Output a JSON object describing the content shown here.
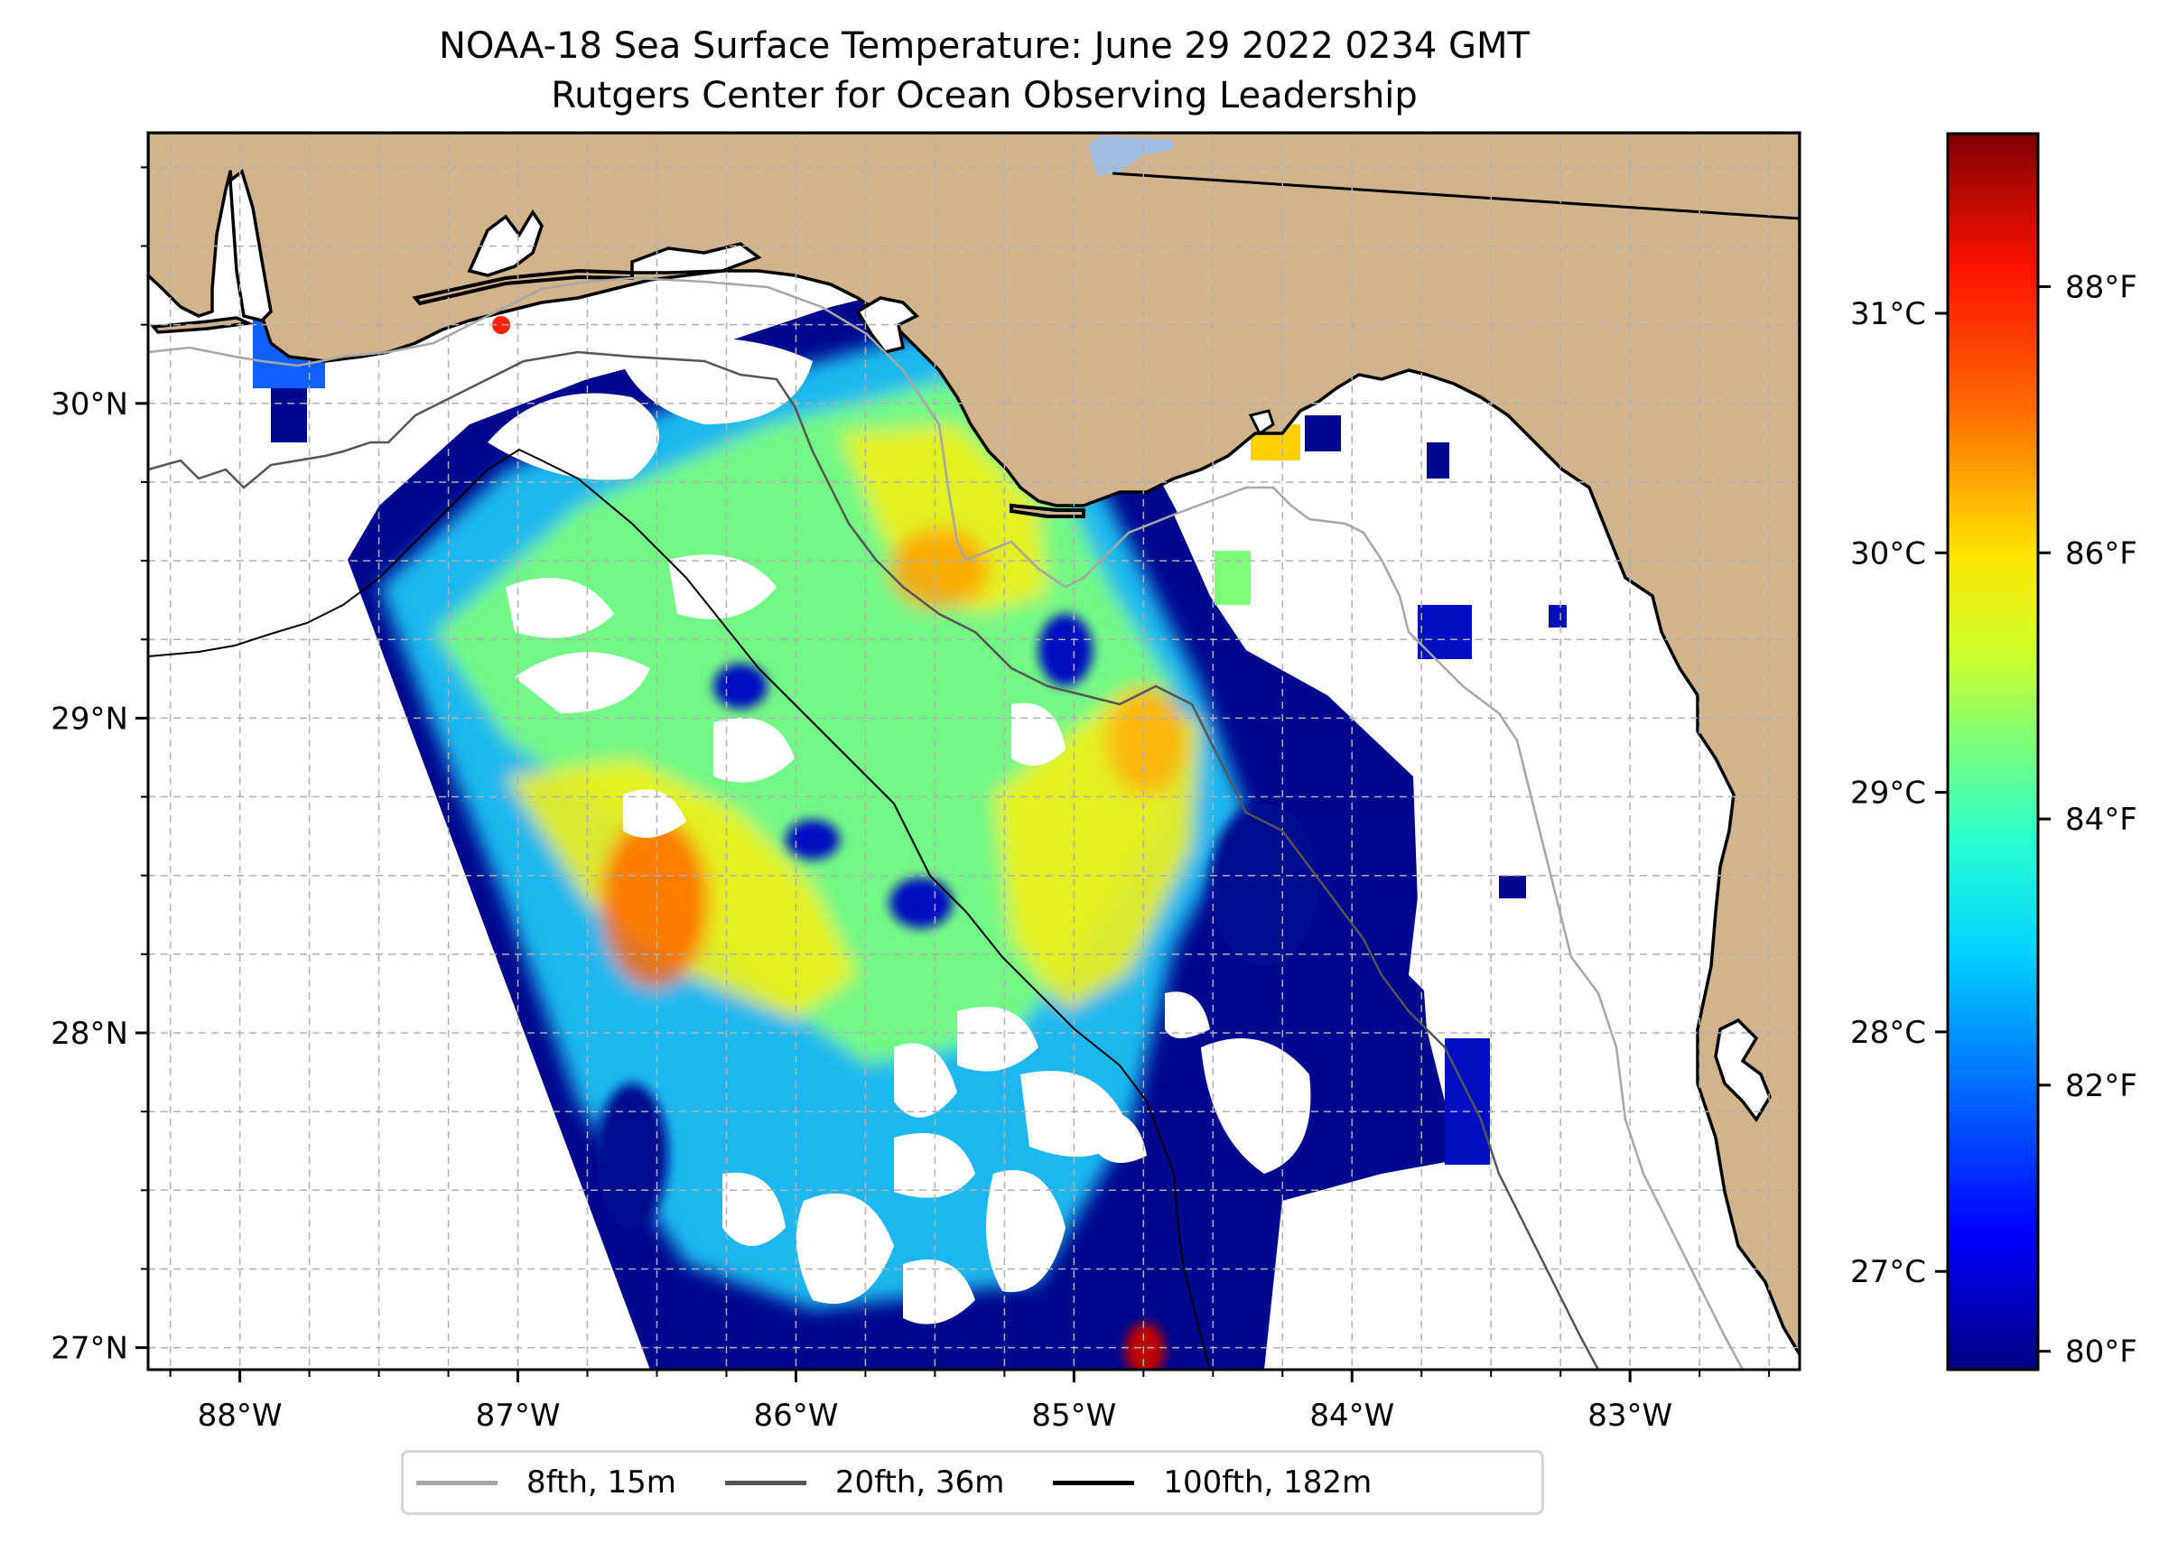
{
  "title": {
    "line1": "NOAA-18 Sea Surface Temperature: June 29 2022 0234 GMT",
    "line2": "Rutgers Center for Ocean Observing Leadership"
  },
  "chart_data": {
    "type": "heatmap",
    "title": "NOAA-18 Sea Surface Temperature: June 29 2022 0234 GMT",
    "subtitle": "Rutgers Center for Ocean Observing Leadership",
    "xlabel": "",
    "ylabel": "",
    "xlim": [
      -88.33,
      -82.39
    ],
    "ylim": [
      26.93,
      30.86
    ],
    "x_ticks": [
      -88,
      -87,
      -86,
      -85,
      -84,
      -83
    ],
    "x_tick_labels": [
      "88°W",
      "87°W",
      "86°W",
      "85°W",
      "84°W",
      "83°W"
    ],
    "y_ticks": [
      27,
      28,
      29,
      30
    ],
    "y_tick_labels": [
      "27°N",
      "28°N",
      "29°N",
      "30°N"
    ],
    "grid": true,
    "colormap": "jet",
    "colorbar": {
      "range_c": [
        26.59,
        31.75
      ],
      "celsius_ticks": [
        27,
        28,
        29,
        30,
        31
      ],
      "celsius_labels": [
        "27°C",
        "28°C",
        "29°C",
        "30°C",
        "31°C"
      ],
      "fahrenheit_ticks": [
        80,
        82,
        84,
        86,
        88
      ],
      "fahrenheit_labels": [
        "80°F",
        "82°F",
        "84°F",
        "86°F",
        "88°F"
      ]
    },
    "legend": {
      "placement": "bottom-center",
      "entries": [
        {
          "label": "8fth, 15m",
          "color": "#a6a6a6"
        },
        {
          "label": "20fth, 36m",
          "color": "#555555"
        },
        {
          "label": "100fth, 182m",
          "color": "#000000"
        }
      ]
    },
    "warm_patches": [
      {
        "name": "central-warm-band",
        "lon": -86.4,
        "lat": 28.5,
        "temp_c": 31.0
      },
      {
        "name": "apalachicola-warm",
        "lon": -85.6,
        "lat": 29.6,
        "temp_c": 30.5
      },
      {
        "name": "east-warm",
        "lon": -85.0,
        "lat": 28.8,
        "temp_c": 30.4
      },
      {
        "name": "pensacola-spot",
        "lon": -87.0,
        "lat": 30.25,
        "temp_c": 31.3
      },
      {
        "name": "south-hotspot",
        "lon": -84.8,
        "lat": 27.0,
        "temp_c": 31.6
      }
    ]
  },
  "colors": {
    "land": "#d2b48c",
    "lake": "#9fbde3",
    "grid": "#b0b0b0"
  }
}
